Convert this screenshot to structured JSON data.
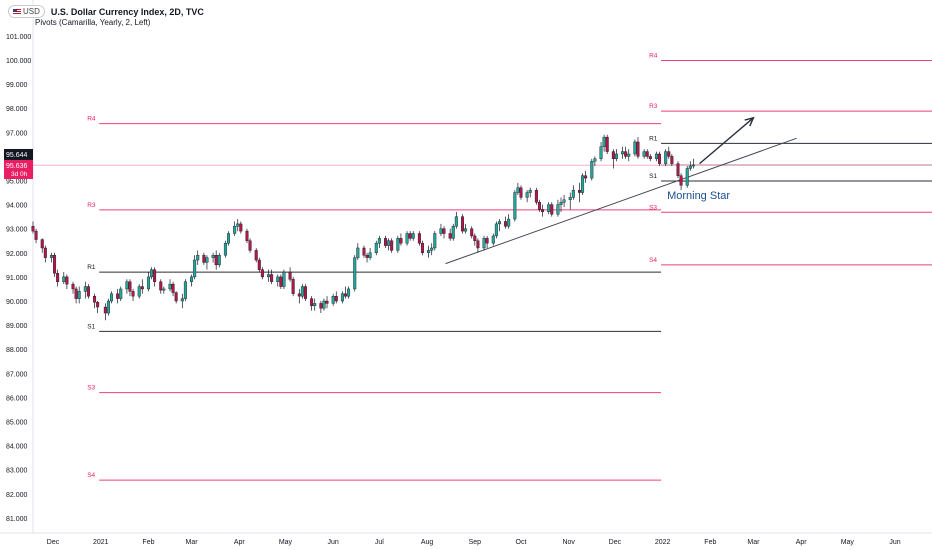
{
  "header": {
    "symbol_badge": "USD",
    "title": "U.S. Dollar Currency Index, 2D, TVC",
    "indicator": "Pivots (Camarilla, Yearly, 2, Left)"
  },
  "colors": {
    "up": "#26a69a",
    "down": "#b2174a",
    "pivot_red": "#e91e63",
    "pivot_black": "#131722",
    "grid_axis_text": "#131722",
    "annotation": "#1e4d8c"
  },
  "chart_data": {
    "type": "candlestick",
    "title": "U.S. Dollar Currency Index, 2D, TVC",
    "y_axis": {
      "min": 80.7,
      "max": 101.4,
      "ticks": [
        "101.000",
        "100.000",
        "99.000",
        "98.000",
        "97.000",
        "96.000",
        "95.000",
        "94.000",
        "93.000",
        "92.000",
        "91.000",
        "90.000",
        "89.000",
        "88.000",
        "87.000",
        "86.000",
        "85.000",
        "84.000",
        "83.000",
        "82.000",
        "81.000"
      ],
      "position": "left"
    },
    "x_axis": {
      "min": "2020-11-18",
      "max": "2022-06-25",
      "labels": [
        {
          "date": "2020-12-01",
          "label": "Dec"
        },
        {
          "date": "2021-01-01",
          "label": "2021"
        },
        {
          "date": "2021-02-01",
          "label": "Feb"
        },
        {
          "date": "2021-03-01",
          "label": "Mar"
        },
        {
          "date": "2021-04-01",
          "label": "Apr"
        },
        {
          "date": "2021-05-01",
          "label": "May"
        },
        {
          "date": "2021-06-01",
          "label": "Jun"
        },
        {
          "date": "2021-07-01",
          "label": "Jul"
        },
        {
          "date": "2021-08-01",
          "label": "Aug"
        },
        {
          "date": "2021-09-01",
          "label": "Sep"
        },
        {
          "date": "2021-10-01",
          "label": "Oct"
        },
        {
          "date": "2021-11-01",
          "label": "Nov"
        },
        {
          "date": "2021-12-01",
          "label": "Dec"
        },
        {
          "date": "2022-01-01",
          "label": "2022"
        },
        {
          "date": "2022-02-01",
          "label": "Feb"
        },
        {
          "date": "2022-03-01",
          "label": "Mar"
        },
        {
          "date": "2022-04-01",
          "label": "Apr"
        },
        {
          "date": "2022-05-01",
          "label": "May"
        },
        {
          "date": "2022-06-01",
          "label": "Jun"
        }
      ]
    },
    "price_labels": {
      "last": "95.644",
      "current": "95.636",
      "countdown": "3d 0h",
      "current_value": 95.636
    },
    "pivot_levels_2021": {
      "start": "2020-12-31",
      "end": "2021-12-31",
      "levels": [
        {
          "name": "R4",
          "value": 97.36,
          "color": "red"
        },
        {
          "name": "R3",
          "value": 93.78,
          "color": "red"
        },
        {
          "name": "R1",
          "value": 91.2,
          "color": "black"
        },
        {
          "name": "S1",
          "value": 88.74,
          "color": "black"
        },
        {
          "name": "S3",
          "value": 86.2,
          "color": "red"
        },
        {
          "name": "S4",
          "value": 82.57,
          "color": "red"
        }
      ]
    },
    "pivot_levels_2022": {
      "start": "2021-12-31",
      "end": "2022-06-25",
      "levels": [
        {
          "name": "R4",
          "value": 99.98,
          "color": "red"
        },
        {
          "name": "R3",
          "value": 97.88,
          "color": "red"
        },
        {
          "name": "R1",
          "value": 96.54,
          "color": "black"
        },
        {
          "name": "",
          "value": 95.64,
          "color": "black"
        },
        {
          "name": "S1",
          "value": 94.98,
          "color": "black"
        },
        {
          "name": "S3",
          "value": 93.68,
          "color": "red"
        },
        {
          "name": "S4",
          "value": 91.5,
          "color": "red"
        }
      ]
    },
    "trendlines": [
      {
        "from": {
          "date": "2021-08-13",
          "value": 91.55
        },
        "to": {
          "date": "2022-03-29",
          "value": 96.75
        }
      }
    ],
    "arrow": {
      "from": {
        "date": "2022-01-25",
        "value": 95.7
      },
      "to": {
        "date": "2022-03-01",
        "value": 97.6
      }
    },
    "annotations": [
      {
        "text": "Morning Star",
        "date": "2021-12-31",
        "value": 94.4
      }
    ],
    "candles": [
      [
        "2020-11-18",
        93.1,
        93.3,
        92.8,
        92.9
      ],
      [
        "2020-11-20",
        92.9,
        93.0,
        92.4,
        92.55
      ],
      [
        "2020-11-24",
        92.55,
        92.6,
        92.0,
        92.2
      ],
      [
        "2020-11-26",
        92.2,
        92.3,
        91.6,
        91.8
      ],
      [
        "2020-11-30",
        91.8,
        92.0,
        91.6,
        91.9
      ],
      [
        "2020-12-02",
        91.9,
        92.0,
        91.0,
        91.15
      ],
      [
        "2020-12-04",
        91.15,
        91.3,
        90.6,
        90.8
      ],
      [
        "2020-12-08",
        90.8,
        91.2,
        90.7,
        91.0
      ],
      [
        "2020-12-10",
        91.0,
        91.1,
        90.5,
        90.7
      ],
      [
        "2020-12-14",
        90.7,
        90.8,
        90.3,
        90.5
      ],
      [
        "2020-12-16",
        90.5,
        90.6,
        89.9,
        90.1
      ],
      [
        "2020-12-18",
        90.1,
        90.6,
        89.9,
        90.4
      ],
      [
        "2020-12-22",
        90.4,
        90.8,
        90.1,
        90.6
      ],
      [
        "2020-12-24",
        90.6,
        90.7,
        90.1,
        90.2
      ],
      [
        "2020-12-28",
        90.2,
        90.3,
        89.7,
        89.95
      ],
      [
        "2020-12-30",
        89.95,
        90.0,
        89.5,
        89.75
      ],
      [
        "2021-01-04",
        89.75,
        89.9,
        89.2,
        89.5
      ],
      [
        "2021-01-06",
        89.5,
        90.1,
        89.4,
        90.0
      ],
      [
        "2021-01-08",
        90.0,
        90.4,
        89.9,
        90.3
      ],
      [
        "2021-01-12",
        90.3,
        90.5,
        89.9,
        90.1
      ],
      [
        "2021-01-14",
        90.1,
        90.6,
        90.0,
        90.5
      ],
      [
        "2021-01-18",
        90.5,
        90.9,
        90.3,
        90.8
      ],
      [
        "2021-01-20",
        90.8,
        90.9,
        90.2,
        90.4
      ],
      [
        "2021-01-22",
        90.4,
        90.5,
        90.0,
        90.2
      ],
      [
        "2021-01-26",
        90.2,
        90.7,
        90.1,
        90.6
      ],
      [
        "2021-01-28",
        90.6,
        90.9,
        90.3,
        90.5
      ],
      [
        "2021-02-01",
        90.5,
        91.2,
        90.4,
        91.0
      ],
      [
        "2021-02-03",
        91.0,
        91.4,
        90.9,
        91.3
      ],
      [
        "2021-02-05",
        91.3,
        91.4,
        90.6,
        90.8
      ],
      [
        "2021-02-09",
        90.8,
        90.9,
        90.3,
        90.45
      ],
      [
        "2021-02-11",
        90.45,
        90.6,
        90.3,
        90.5
      ],
      [
        "2021-02-15",
        90.5,
        90.9,
        90.4,
        90.7
      ],
      [
        "2021-02-17",
        90.7,
        90.8,
        90.2,
        90.35
      ],
      [
        "2021-02-19",
        90.35,
        90.4,
        89.9,
        90.0
      ],
      [
        "2021-02-23",
        90.0,
        90.3,
        89.7,
        90.1
      ],
      [
        "2021-02-25",
        90.1,
        90.9,
        90.0,
        90.8
      ],
      [
        "2021-03-01",
        90.8,
        91.1,
        90.6,
        91.0
      ],
      [
        "2021-03-03",
        91.0,
        91.9,
        90.9,
        91.7
      ],
      [
        "2021-03-05",
        91.7,
        92.1,
        91.5,
        91.9
      ],
      [
        "2021-03-09",
        91.9,
        92.0,
        91.5,
        91.6
      ],
      [
        "2021-03-11",
        91.6,
        91.9,
        91.3,
        91.8
      ],
      [
        "2021-03-15",
        91.8,
        92.0,
        91.6,
        91.9
      ],
      [
        "2021-03-17",
        91.9,
        92.1,
        91.3,
        91.5
      ],
      [
        "2021-03-19",
        91.5,
        92.0,
        91.4,
        91.9
      ],
      [
        "2021-03-23",
        91.9,
        92.5,
        91.8,
        92.4
      ],
      [
        "2021-03-25",
        92.4,
        92.9,
        92.3,
        92.8
      ],
      [
        "2021-03-29",
        92.8,
        93.3,
        92.7,
        93.1
      ],
      [
        "2021-03-31",
        93.1,
        93.4,
        92.9,
        93.2
      ],
      [
        "2021-04-02",
        93.2,
        93.3,
        92.8,
        92.9
      ],
      [
        "2021-04-06",
        92.9,
        93.0,
        92.4,
        92.5
      ],
      [
        "2021-04-08",
        92.5,
        92.6,
        92.0,
        92.1
      ],
      [
        "2021-04-12",
        92.1,
        92.2,
        91.6,
        91.7
      ],
      [
        "2021-04-14",
        91.7,
        91.8,
        91.2,
        91.3
      ],
      [
        "2021-04-16",
        91.3,
        91.4,
        90.9,
        91.0
      ],
      [
        "2021-04-20",
        91.0,
        91.3,
        90.8,
        91.1
      ],
      [
        "2021-04-22",
        91.1,
        91.3,
        90.7,
        90.8
      ],
      [
        "2021-04-26",
        90.8,
        91.1,
        90.6,
        91.0
      ],
      [
        "2021-04-28",
        91.0,
        91.1,
        90.5,
        90.6
      ],
      [
        "2021-04-30",
        90.6,
        91.3,
        90.5,
        91.2
      ],
      [
        "2021-05-04",
        91.2,
        91.4,
        90.8,
        90.9
      ],
      [
        "2021-05-06",
        90.9,
        91.0,
        90.2,
        90.3
      ],
      [
        "2021-05-10",
        90.3,
        90.5,
        89.9,
        90.2
      ],
      [
        "2021-05-12",
        90.2,
        90.7,
        90.1,
        90.6
      ],
      [
        "2021-05-14",
        90.6,
        90.7,
        90.0,
        90.1
      ],
      [
        "2021-05-18",
        90.1,
        90.2,
        89.6,
        89.8
      ],
      [
        "2021-05-20",
        89.8,
        90.1,
        89.6,
        89.9
      ],
      [
        "2021-05-24",
        89.9,
        90.0,
        89.5,
        89.7
      ],
      [
        "2021-05-26",
        89.7,
        90.1,
        89.6,
        90.0
      ],
      [
        "2021-05-28",
        90.0,
        90.2,
        89.7,
        89.9
      ],
      [
        "2021-06-01",
        89.9,
        90.3,
        89.8,
        90.2
      ],
      [
        "2021-06-03",
        90.2,
        90.4,
        89.9,
        90.0
      ],
      [
        "2021-06-07",
        90.0,
        90.4,
        89.9,
        90.3
      ],
      [
        "2021-06-09",
        90.3,
        90.6,
        90.1,
        90.2
      ],
      [
        "2021-06-11",
        90.2,
        90.6,
        90.1,
        90.5
      ],
      [
        "2021-06-15",
        90.5,
        91.9,
        90.4,
        91.8
      ],
      [
        "2021-06-17",
        91.8,
        92.4,
        91.7,
        92.2
      ],
      [
        "2021-06-21",
        92.2,
        92.3,
        91.8,
        91.9
      ],
      [
        "2021-06-23",
        91.9,
        92.0,
        91.6,
        91.8
      ],
      [
        "2021-06-25",
        91.8,
        92.2,
        91.7,
        92.0
      ],
      [
        "2021-06-29",
        92.0,
        92.5,
        91.9,
        92.4
      ],
      [
        "2021-07-01",
        92.4,
        92.7,
        92.2,
        92.6
      ],
      [
        "2021-07-05",
        92.6,
        92.7,
        92.2,
        92.3
      ],
      [
        "2021-07-07",
        92.3,
        92.6,
        92.1,
        92.5
      ],
      [
        "2021-07-09",
        92.5,
        92.6,
        92.0,
        92.1
      ],
      [
        "2021-07-13",
        92.1,
        92.7,
        92.0,
        92.6
      ],
      [
        "2021-07-15",
        92.6,
        92.8,
        92.3,
        92.4
      ],
      [
        "2021-07-19",
        92.4,
        92.9,
        92.3,
        92.8
      ],
      [
        "2021-07-21",
        92.8,
        92.9,
        92.5,
        92.6
      ],
      [
        "2021-07-23",
        92.6,
        92.9,
        92.5,
        92.8
      ],
      [
        "2021-07-27",
        92.8,
        92.9,
        92.3,
        92.4
      ],
      [
        "2021-07-29",
        92.4,
        92.5,
        91.9,
        92.0
      ],
      [
        "2021-08-02",
        92.0,
        92.3,
        91.8,
        92.1
      ],
      [
        "2021-08-04",
        92.1,
        92.4,
        91.9,
        92.2
      ],
      [
        "2021-08-06",
        92.2,
        92.9,
        92.1,
        92.8
      ],
      [
        "2021-08-10",
        92.8,
        93.2,
        92.7,
        93.0
      ],
      [
        "2021-08-12",
        93.0,
        93.1,
        92.6,
        92.8
      ],
      [
        "2021-08-16",
        92.8,
        93.0,
        92.5,
        92.6
      ],
      [
        "2021-08-18",
        92.6,
        93.2,
        92.5,
        93.1
      ],
      [
        "2021-08-20",
        93.1,
        93.7,
        93.0,
        93.5
      ],
      [
        "2021-08-24",
        93.5,
        93.6,
        92.8,
        92.9
      ],
      [
        "2021-08-26",
        92.9,
        93.2,
        92.8,
        93.0
      ],
      [
        "2021-08-30",
        93.0,
        93.1,
        92.6,
        92.7
      ],
      [
        "2021-09-01",
        92.7,
        92.8,
        92.3,
        92.5
      ],
      [
        "2021-09-03",
        92.5,
        92.6,
        92.0,
        92.2
      ],
      [
        "2021-09-07",
        92.2,
        92.7,
        92.1,
        92.6
      ],
      [
        "2021-09-09",
        92.6,
        92.7,
        92.2,
        92.4
      ],
      [
        "2021-09-13",
        92.4,
        92.8,
        92.3,
        92.7
      ],
      [
        "2021-09-15",
        92.7,
        93.3,
        92.6,
        93.2
      ],
      [
        "2021-09-17",
        93.2,
        93.4,
        92.9,
        93.3
      ],
      [
        "2021-09-21",
        93.3,
        93.5,
        93.0,
        93.1
      ],
      [
        "2021-09-23",
        93.1,
        93.6,
        93.0,
        93.4
      ],
      [
        "2021-09-27",
        93.4,
        94.6,
        93.3,
        94.5
      ],
      [
        "2021-09-29",
        94.5,
        94.9,
        94.4,
        94.7
      ],
      [
        "2021-10-01",
        94.7,
        94.8,
        94.2,
        94.3
      ],
      [
        "2021-10-05",
        94.3,
        94.6,
        94.1,
        94.5
      ],
      [
        "2021-10-07",
        94.5,
        94.7,
        94.3,
        94.6
      ],
      [
        "2021-10-11",
        94.6,
        94.7,
        94.0,
        94.1
      ],
      [
        "2021-10-13",
        94.1,
        94.2,
        93.7,
        93.8
      ],
      [
        "2021-10-15",
        93.8,
        94.0,
        93.5,
        93.7
      ],
      [
        "2021-10-19",
        93.7,
        94.1,
        93.6,
        94.0
      ],
      [
        "2021-10-21",
        94.0,
        94.1,
        93.5,
        93.6
      ],
      [
        "2021-10-25",
        93.6,
        94.2,
        93.5,
        94.0
      ],
      [
        "2021-10-27",
        94.0,
        94.3,
        93.7,
        94.1
      ],
      [
        "2021-10-29",
        94.1,
        94.4,
        93.9,
        94.2
      ],
      [
        "2021-11-02",
        94.2,
        94.5,
        93.8,
        94.3
      ],
      [
        "2021-11-04",
        94.3,
        94.8,
        94.2,
        94.6
      ],
      [
        "2021-11-08",
        94.6,
        94.9,
        94.1,
        94.5
      ],
      [
        "2021-11-10",
        94.5,
        95.3,
        94.4,
        95.2
      ],
      [
        "2021-11-12",
        95.2,
        95.4,
        94.9,
        95.1
      ],
      [
        "2021-11-16",
        95.1,
        95.9,
        95.0,
        95.8
      ],
      [
        "2021-11-18",
        95.8,
        96.0,
        95.6,
        95.9
      ],
      [
        "2021-11-22",
        95.9,
        96.6,
        95.8,
        96.4
      ],
      [
        "2021-11-24",
        96.4,
        96.9,
        96.2,
        96.8
      ],
      [
        "2021-11-26",
        96.8,
        96.9,
        96.1,
        96.2
      ],
      [
        "2021-11-30",
        96.2,
        96.3,
        95.5,
        95.9
      ],
      [
        "2021-12-02",
        95.9,
        96.3,
        95.8,
        96.1
      ],
      [
        "2021-12-06",
        96.1,
        96.4,
        95.9,
        96.2
      ],
      [
        "2021-12-08",
        96.2,
        96.4,
        95.9,
        96.0
      ],
      [
        "2021-12-10",
        96.0,
        96.3,
        95.8,
        96.1
      ],
      [
        "2021-12-14",
        96.1,
        96.7,
        96.0,
        96.6
      ],
      [
        "2021-12-16",
        96.6,
        96.8,
        95.9,
        96.0
      ],
      [
        "2021-12-20",
        96.0,
        96.3,
        95.9,
        96.2
      ],
      [
        "2021-12-22",
        96.2,
        96.3,
        95.9,
        96.0
      ],
      [
        "2021-12-24",
        96.0,
        96.1,
        95.8,
        95.9
      ],
      [
        "2021-12-28",
        95.9,
        96.2,
        95.8,
        96.1
      ],
      [
        "2021-12-30",
        96.1,
        96.2,
        95.6,
        95.7
      ],
      [
        "2022-01-03",
        95.7,
        96.3,
        95.6,
        96.2
      ],
      [
        "2022-01-05",
        96.2,
        96.4,
        95.9,
        96.0
      ],
      [
        "2022-01-07",
        96.0,
        96.1,
        95.6,
        95.7
      ],
      [
        "2022-01-11",
        95.7,
        95.8,
        95.1,
        95.2
      ],
      [
        "2022-01-13",
        95.2,
        95.3,
        94.6,
        94.8
      ],
      [
        "2022-01-17",
        94.8,
        95.6,
        94.7,
        95.5
      ],
      [
        "2022-01-19",
        95.5,
        95.8,
        95.4,
        95.6
      ],
      [
        "2022-01-21",
        95.6,
        95.9,
        95.5,
        95.644
      ]
    ]
  }
}
